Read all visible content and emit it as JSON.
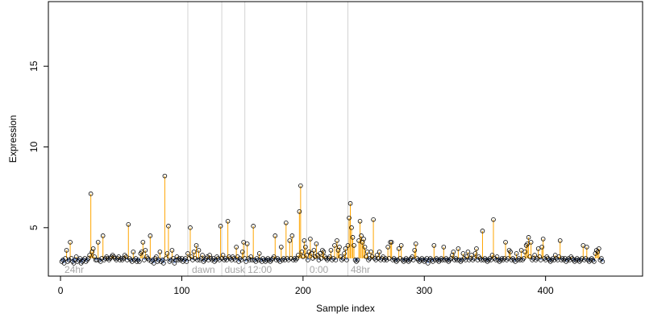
{
  "chart_data": {
    "type": "scatter",
    "xlabel": "Sample index",
    "ylabel": "Expression",
    "xlim": [
      -10,
      480
    ],
    "ylim": [
      2.0,
      19.0
    ],
    "x_ticks": [
      0,
      100,
      200,
      300,
      400
    ],
    "y_ticks": [
      5,
      10,
      15
    ],
    "baseline": 3.1,
    "grid": false,
    "colors": {
      "stem_up": "#ffa500",
      "bar_down": "#87a8e8",
      "point_stroke": "#000000",
      "phase_line": "#d3d3d3",
      "phase_label": "#a6a6a6"
    },
    "phase_lines": [
      105,
      133,
      152,
      203,
      237
    ],
    "phase_labels": [
      {
        "text": "24hr",
        "x": 2
      },
      {
        "text": "dawn",
        "x": 107
      },
      {
        "text": "dusk",
        "x": 134
      },
      {
        "text": "12:00",
        "x": 153
      },
      {
        "text": "0:00",
        "x": 204
      },
      {
        "text": "48hr",
        "x": 238
      }
    ],
    "points": [
      [
        1,
        2.9
      ],
      [
        2,
        3.0
      ],
      [
        3,
        2.8
      ],
      [
        4,
        3.1
      ],
      [
        5,
        3.6
      ],
      [
        6,
        2.9
      ],
      [
        7,
        3.0
      ],
      [
        8,
        4.1
      ],
      [
        9,
        3.1
      ],
      [
        10,
        2.9
      ],
      [
        11,
        2.8
      ],
      [
        12,
        3.0
      ],
      [
        13,
        3.2
      ],
      [
        14,
        2.9
      ],
      [
        15,
        3.0
      ],
      [
        16,
        3.1
      ],
      [
        17,
        2.8
      ],
      [
        18,
        2.9
      ],
      [
        19,
        3.0
      ],
      [
        20,
        3.1
      ],
      [
        21,
        2.9
      ],
      [
        22,
        3.0
      ],
      [
        23,
        3.1
      ],
      [
        24,
        3.3
      ],
      [
        25,
        7.1
      ],
      [
        26,
        3.5
      ],
      [
        27,
        3.7
      ],
      [
        28,
        3.2
      ],
      [
        29,
        3.0
      ],
      [
        30,
        3.0
      ],
      [
        31,
        4.1
      ],
      [
        32,
        3.0
      ],
      [
        33,
        2.9
      ],
      [
        34,
        3.1
      ],
      [
        35,
        4.5
      ],
      [
        36,
        3.0
      ],
      [
        37,
        3.1
      ],
      [
        38,
        3.2
      ],
      [
        39,
        3.1
      ],
      [
        40,
        3.0
      ],
      [
        41,
        3.1
      ],
      [
        42,
        3.2
      ],
      [
        43,
        3.3
      ],
      [
        44,
        3.2
      ],
      [
        45,
        3.1
      ],
      [
        46,
        3.0
      ],
      [
        47,
        3.1
      ],
      [
        48,
        3.2
      ],
      [
        49,
        3.0
      ],
      [
        50,
        3.1
      ],
      [
        51,
        3.0
      ],
      [
        52,
        3.1
      ],
      [
        53,
        3.3
      ],
      [
        54,
        3.2
      ],
      [
        55,
        3.0
      ],
      [
        56,
        5.2
      ],
      [
        57,
        3.1
      ],
      [
        58,
        3.0
      ],
      [
        59,
        2.9
      ],
      [
        60,
        3.5
      ],
      [
        61,
        3.0
      ],
      [
        62,
        3.1
      ],
      [
        63,
        2.9
      ],
      [
        64,
        3.0
      ],
      [
        65,
        2.9
      ],
      [
        66,
        3.4
      ],
      [
        67,
        3.5
      ],
      [
        68,
        4.1
      ],
      [
        69,
        3.0
      ],
      [
        70,
        3.6
      ],
      [
        71,
        3.2
      ],
      [
        72,
        3.1
      ],
      [
        73,
        3.0
      ],
      [
        74,
        4.5
      ],
      [
        75,
        2.9
      ],
      [
        76,
        3.0
      ],
      [
        77,
        2.8
      ],
      [
        78,
        3.1
      ],
      [
        79,
        3.2
      ],
      [
        80,
        2.9
      ],
      [
        81,
        3.0
      ],
      [
        82,
        3.5
      ],
      [
        83,
        2.9
      ],
      [
        84,
        3.0
      ],
      [
        85,
        2.8
      ],
      [
        86,
        8.2
      ],
      [
        87,
        3.1
      ],
      [
        88,
        3.4
      ],
      [
        89,
        5.1
      ],
      [
        90,
        2.9
      ],
      [
        91,
        3.0
      ],
      [
        92,
        3.6
      ],
      [
        93,
        3.1
      ],
      [
        94,
        2.8
      ],
      [
        95,
        3.0
      ],
      [
        96,
        3.2
      ],
      [
        97,
        3.0
      ],
      [
        98,
        3.1
      ],
      [
        99,
        3.0
      ],
      [
        100,
        3.1
      ],
      [
        101,
        2.9
      ],
      [
        102,
        3.0
      ],
      [
        103,
        3.1
      ],
      [
        104,
        2.9
      ],
      [
        105,
        3.4
      ],
      [
        106,
        3.1
      ],
      [
        107,
        5.0
      ],
      [
        108,
        3.2
      ],
      [
        109,
        3.0
      ],
      [
        110,
        3.5
      ],
      [
        111,
        3.1
      ],
      [
        112,
        3.9
      ],
      [
        113,
        3.0
      ],
      [
        114,
        3.6
      ],
      [
        115,
        3.0
      ],
      [
        116,
        3.1
      ],
      [
        117,
        3.3
      ],
      [
        118,
        2.9
      ],
      [
        119,
        3.0
      ],
      [
        120,
        3.1
      ],
      [
        121,
        3.2
      ],
      [
        122,
        3.0
      ],
      [
        123,
        3.3
      ],
      [
        124,
        3.1
      ],
      [
        125,
        3.0
      ],
      [
        126,
        3.1
      ],
      [
        127,
        2.9
      ],
      [
        128,
        3.0
      ],
      [
        129,
        3.2
      ],
      [
        130,
        3.1
      ],
      [
        131,
        3.0
      ],
      [
        132,
        5.1
      ],
      [
        133,
        3.1
      ],
      [
        134,
        3.3
      ],
      [
        135,
        3.0
      ],
      [
        136,
        3.1
      ],
      [
        137,
        3.0
      ],
      [
        138,
        5.4
      ],
      [
        139,
        3.2
      ],
      [
        140,
        3.1
      ],
      [
        141,
        3.0
      ],
      [
        142,
        3.2
      ],
      [
        143,
        3.1
      ],
      [
        144,
        3.0
      ],
      [
        145,
        3.8
      ],
      [
        146,
        3.2
      ],
      [
        147,
        2.9
      ],
      [
        148,
        3.1
      ],
      [
        149,
        3.0
      ],
      [
        150,
        3.5
      ],
      [
        151,
        4.1
      ],
      [
        152,
        3.1
      ],
      [
        153,
        2.9
      ],
      [
        154,
        4.0
      ],
      [
        155,
        3.1
      ],
      [
        156,
        3.0
      ],
      [
        157,
        3.2
      ],
      [
        158,
        3.0
      ],
      [
        159,
        5.1
      ],
      [
        160,
        3.0
      ],
      [
        161,
        2.9
      ],
      [
        162,
        3.1
      ],
      [
        163,
        3.0
      ],
      [
        164,
        3.4
      ],
      [
        165,
        3.0
      ],
      [
        166,
        2.9
      ],
      [
        167,
        3.1
      ],
      [
        168,
        3.0
      ],
      [
        169,
        2.9
      ],
      [
        170,
        3.0
      ],
      [
        171,
        3.1
      ],
      [
        172,
        3.0
      ],
      [
        173,
        2.9
      ],
      [
        174,
        3.0
      ],
      [
        175,
        3.1
      ],
      [
        176,
        3.2
      ],
      [
        177,
        4.5
      ],
      [
        178,
        3.0
      ],
      [
        179,
        3.1
      ],
      [
        180,
        3.0
      ],
      [
        181,
        2.9
      ],
      [
        182,
        3.8
      ],
      [
        183,
        3.0
      ],
      [
        184,
        3.1
      ],
      [
        185,
        3.0
      ],
      [
        186,
        5.3
      ],
      [
        187,
        3.1
      ],
      [
        188,
        3.0
      ],
      [
        189,
        4.2
      ],
      [
        190,
        3.1
      ],
      [
        191,
        4.5
      ],
      [
        192,
        3.0
      ],
      [
        193,
        3.1
      ],
      [
        194,
        3.0
      ],
      [
        195,
        3.1
      ],
      [
        196,
        3.3
      ],
      [
        197,
        6.0
      ],
      [
        198,
        7.6
      ],
      [
        199,
        3.5
      ],
      [
        200,
        3.2
      ],
      [
        201,
        4.2
      ],
      [
        202,
        3.8
      ],
      [
        203,
        3.3
      ],
      [
        204,
        3.0
      ],
      [
        205,
        3.5
      ],
      [
        206,
        4.3
      ],
      [
        207,
        3.4
      ],
      [
        208,
        3.1
      ],
      [
        209,
        3.6
      ],
      [
        210,
        3.2
      ],
      [
        211,
        4.0
      ],
      [
        212,
        3.3
      ],
      [
        213,
        3.0
      ],
      [
        214,
        3.4
      ],
      [
        215,
        3.1
      ],
      [
        216,
        3.6
      ],
      [
        217,
        3.5
      ],
      [
        218,
        3.2
      ],
      [
        219,
        3.1
      ],
      [
        220,
        3.0
      ],
      [
        221,
        3.1
      ],
      [
        222,
        3.2
      ],
      [
        223,
        3.6
      ],
      [
        224,
        3.0
      ],
      [
        225,
        3.1
      ],
      [
        226,
        3.9
      ],
      [
        227,
        3.0
      ],
      [
        228,
        4.2
      ],
      [
        229,
        3.6
      ],
      [
        230,
        3.8
      ],
      [
        231,
        3.2
      ],
      [
        232,
        3.0
      ],
      [
        233,
        3.1
      ],
      [
        234,
        3.4
      ],
      [
        235,
        3.7
      ],
      [
        236,
        3.0
      ],
      [
        237,
        3.9
      ],
      [
        238,
        5.6
      ],
      [
        239,
        6.5
      ],
      [
        240,
        5.0
      ],
      [
        241,
        4.4
      ],
      [
        242,
        3.9
      ],
      [
        243,
        3.0
      ],
      [
        244,
        2.9
      ],
      [
        245,
        3.0
      ],
      [
        246,
        4.2
      ],
      [
        247,
        5.4
      ],
      [
        248,
        4.5
      ],
      [
        249,
        4.1
      ],
      [
        250,
        4.3
      ],
      [
        251,
        3.8
      ],
      [
        252,
        3.2
      ],
      [
        253,
        3.5
      ],
      [
        254,
        3.0
      ],
      [
        255,
        3.1
      ],
      [
        256,
        3.5
      ],
      [
        257,
        3.2
      ],
      [
        258,
        5.5
      ],
      [
        259,
        3.1
      ],
      [
        260,
        3.0
      ],
      [
        261,
        3.3
      ],
      [
        262,
        3.1
      ],
      [
        263,
        3.5
      ],
      [
        264,
        3.0
      ],
      [
        265,
        3.1
      ],
      [
        266,
        3.2
      ],
      [
        267,
        3.0
      ],
      [
        268,
        3.1
      ],
      [
        269,
        3.0
      ],
      [
        270,
        3.8
      ],
      [
        271,
        3.1
      ],
      [
        272,
        4.1
      ],
      [
        273,
        4.1
      ],
      [
        274,
        3.0
      ],
      [
        275,
        3.1
      ],
      [
        276,
        3.0
      ],
      [
        277,
        2.9
      ],
      [
        278,
        3.0
      ],
      [
        279,
        3.7
      ],
      [
        280,
        3.1
      ],
      [
        281,
        3.9
      ],
      [
        282,
        3.0
      ],
      [
        283,
        2.9
      ],
      [
        284,
        3.0
      ],
      [
        285,
        3.1
      ],
      [
        286,
        3.0
      ],
      [
        287,
        2.9
      ],
      [
        288,
        3.0
      ],
      [
        289,
        3.1
      ],
      [
        290,
        3.2
      ],
      [
        291,
        3.0
      ],
      [
        292,
        3.6
      ],
      [
        293,
        4.0
      ],
      [
        294,
        3.1
      ],
      [
        295,
        3.0
      ],
      [
        296,
        2.9
      ],
      [
        297,
        3.0
      ],
      [
        298,
        3.1
      ],
      [
        299,
        3.0
      ],
      [
        300,
        2.9
      ],
      [
        301,
        3.0
      ],
      [
        302,
        3.1
      ],
      [
        303,
        2.8
      ],
      [
        304,
        3.0
      ],
      [
        305,
        3.1
      ],
      [
        306,
        3.0
      ],
      [
        307,
        2.9
      ],
      [
        308,
        3.9
      ],
      [
        309,
        3.0
      ],
      [
        310,
        3.1
      ],
      [
        311,
        3.0
      ],
      [
        312,
        2.9
      ],
      [
        313,
        3.0
      ],
      [
        314,
        3.1
      ],
      [
        315,
        3.0
      ],
      [
        316,
        3.8
      ],
      [
        317,
        3.0
      ],
      [
        318,
        3.1
      ],
      [
        319,
        3.0
      ],
      [
        320,
        2.9
      ],
      [
        321,
        3.0
      ],
      [
        322,
        3.1
      ],
      [
        323,
        3.3
      ],
      [
        324,
        3.5
      ],
      [
        325,
        3.0
      ],
      [
        326,
        3.1
      ],
      [
        327,
        3.0
      ],
      [
        328,
        3.7
      ],
      [
        329,
        3.0
      ],
      [
        330,
        2.9
      ],
      [
        331,
        3.0
      ],
      [
        332,
        3.4
      ],
      [
        333,
        3.1
      ],
      [
        334,
        3.0
      ],
      [
        335,
        3.2
      ],
      [
        336,
        3.5
      ],
      [
        337,
        3.0
      ],
      [
        338,
        3.1
      ],
      [
        339,
        3.3
      ],
      [
        340,
        3.0
      ],
      [
        341,
        3.1
      ],
      [
        342,
        3.4
      ],
      [
        343,
        3.7
      ],
      [
        344,
        3.0
      ],
      [
        345,
        3.2
      ],
      [
        346,
        3.1
      ],
      [
        347,
        3.0
      ],
      [
        348,
        4.8
      ],
      [
        349,
        3.0
      ],
      [
        350,
        3.1
      ],
      [
        351,
        3.0
      ],
      [
        352,
        2.9
      ],
      [
        353,
        3.0
      ],
      [
        354,
        3.1
      ],
      [
        355,
        3.0
      ],
      [
        356,
        3.3
      ],
      [
        357,
        5.5
      ],
      [
        358,
        3.1
      ],
      [
        359,
        3.0
      ],
      [
        360,
        3.2
      ],
      [
        361,
        3.0
      ],
      [
        362,
        2.9
      ],
      [
        363,
        3.0
      ],
      [
        364,
        3.1
      ],
      [
        365,
        3.0
      ],
      [
        366,
        3.1
      ],
      [
        367,
        4.1
      ],
      [
        368,
        3.0
      ],
      [
        369,
        3.1
      ],
      [
        370,
        3.6
      ],
      [
        371,
        3.5
      ],
      [
        372,
        3.0
      ],
      [
        373,
        3.1
      ],
      [
        374,
        3.0
      ],
      [
        375,
        2.9
      ],
      [
        376,
        3.4
      ],
      [
        377,
        3.0
      ],
      [
        378,
        3.1
      ],
      [
        379,
        3.0
      ],
      [
        380,
        3.6
      ],
      [
        381,
        3.0
      ],
      [
        382,
        3.1
      ],
      [
        383,
        3.5
      ],
      [
        384,
        3.9
      ],
      [
        385,
        4.0
      ],
      [
        386,
        4.4
      ],
      [
        387,
        3.2
      ],
      [
        388,
        4.1
      ],
      [
        389,
        3.0
      ],
      [
        390,
        3.1
      ],
      [
        391,
        3.3
      ],
      [
        392,
        3.0
      ],
      [
        393,
        3.1
      ],
      [
        394,
        3.7
      ],
      [
        395,
        3.2
      ],
      [
        396,
        3.0
      ],
      [
        397,
        3.8
      ],
      [
        398,
        4.3
      ],
      [
        399,
        3.1
      ],
      [
        400,
        3.0
      ],
      [
        401,
        3.2
      ],
      [
        402,
        3.1
      ],
      [
        403,
        3.0
      ],
      [
        404,
        2.9
      ],
      [
        405,
        3.0
      ],
      [
        406,
        3.1
      ],
      [
        407,
        3.0
      ],
      [
        408,
        3.3
      ],
      [
        409,
        3.1
      ],
      [
        410,
        3.0
      ],
      [
        411,
        3.2
      ],
      [
        412,
        4.2
      ],
      [
        413,
        3.0
      ],
      [
        414,
        3.1
      ],
      [
        415,
        3.0
      ],
      [
        416,
        3.1
      ],
      [
        417,
        2.9
      ],
      [
        418,
        3.0
      ],
      [
        419,
        3.1
      ],
      [
        420,
        3.0
      ],
      [
        421,
        3.2
      ],
      [
        422,
        3.1
      ],
      [
        423,
        3.0
      ],
      [
        424,
        2.9
      ],
      [
        425,
        3.0
      ],
      [
        426,
        3.1
      ],
      [
        427,
        3.0
      ],
      [
        428,
        2.9
      ],
      [
        429,
        3.0
      ],
      [
        430,
        3.1
      ],
      [
        431,
        3.9
      ],
      [
        432,
        3.0
      ],
      [
        433,
        3.1
      ],
      [
        434,
        3.8
      ],
      [
        435,
        3.0
      ],
      [
        436,
        2.9
      ],
      [
        437,
        3.0
      ],
      [
        438,
        3.1
      ],
      [
        439,
        3.0
      ],
      [
        440,
        2.9
      ],
      [
        441,
        3.4
      ],
      [
        442,
        3.6
      ],
      [
        443,
        3.5
      ],
      [
        444,
        3.7
      ],
      [
        445,
        3.0
      ],
      [
        446,
        3.1
      ],
      [
        447,
        2.9
      ]
    ]
  }
}
